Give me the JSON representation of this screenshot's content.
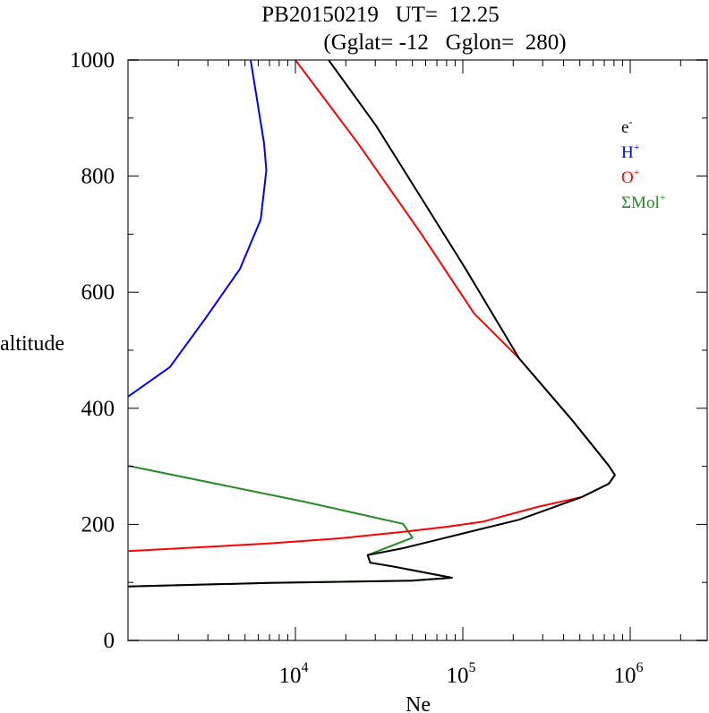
{
  "chart_data": {
    "type": "line",
    "title_line1": "PB20150219   UT=  12.25",
    "title_line2": "(Gglat= -12   Gglon=  280)",
    "xlabel": "Ne",
    "ylabel": "altitude",
    "xscale": "log",
    "xlim": [
      1000,
      2900000
    ],
    "ylim": [
      0,
      1000
    ],
    "grid": false,
    "legend_position": "top-right",
    "x_ticks": [
      {
        "value": 10000,
        "base": "10",
        "exp": "4"
      },
      {
        "value": 100000,
        "base": "10",
        "exp": "5"
      },
      {
        "value": 1000000,
        "base": "10",
        "exp": "6"
      }
    ],
    "y_ticks": [
      {
        "value": 0,
        "label": "0"
      },
      {
        "value": 200,
        "label": "200"
      },
      {
        "value": 400,
        "label": "400"
      },
      {
        "value": 600,
        "label": "600"
      },
      {
        "value": 800,
        "label": "800"
      },
      {
        "value": 1000,
        "label": "1000"
      }
    ],
    "series": [
      {
        "name": "e-",
        "label_base": "e",
        "label_sup": "-",
        "color": "#000000",
        "points": [
          [
            15800,
            1000
          ],
          [
            30300,
            887
          ],
          [
            56000,
            764
          ],
          [
            104000,
            640
          ],
          [
            217000,
            486
          ],
          [
            455000,
            378
          ],
          [
            745000,
            301
          ],
          [
            810000,
            285
          ],
          [
            745000,
            270
          ],
          [
            514000,
            247
          ],
          [
            217000,
            208
          ],
          [
            133000,
            193
          ],
          [
            72000,
            174
          ],
          [
            44000,
            159
          ],
          [
            27000,
            147
          ],
          [
            28000,
            134
          ],
          [
            39000,
            127
          ],
          [
            86000,
            108
          ],
          [
            49500,
            103
          ],
          [
            6900,
            99
          ],
          [
            1000,
            93
          ]
        ]
      },
      {
        "name": "H+",
        "label_base": "H",
        "label_sup": "+",
        "color": "#0000ff",
        "points": [
          [
            5400,
            1000
          ],
          [
            6500,
            856
          ],
          [
            6700,
            810
          ],
          [
            6200,
            725
          ],
          [
            4660,
            640
          ],
          [
            2920,
            556
          ],
          [
            1780,
            471
          ],
          [
            1000,
            420
          ]
        ]
      },
      {
        "name": "O+",
        "label_base": "O",
        "label_sup": "+",
        "color": "#ff0000",
        "points": [
          [
            10000,
            1000
          ],
          [
            23700,
            856
          ],
          [
            56000,
            702
          ],
          [
            117000,
            563
          ],
          [
            217000,
            486
          ],
          [
            455000,
            378
          ],
          [
            745000,
            301
          ],
          [
            810000,
            285
          ],
          [
            745000,
            270
          ],
          [
            514000,
            247
          ],
          [
            278000,
            230
          ],
          [
            133000,
            205
          ],
          [
            81000,
            196
          ],
          [
            44000,
            187
          ],
          [
            18500,
            176
          ],
          [
            6900,
            167
          ],
          [
            1000,
            154
          ]
        ]
      },
      {
        "name": "ΣMol+",
        "label_base": "ΣMol",
        "label_sup": "+",
        "color": "#228b22",
        "points": [
          [
            1000,
            301
          ],
          [
            11300,
            239
          ],
          [
            44000,
            201
          ],
          [
            50000,
            177
          ],
          [
            27000,
            147
          ],
          [
            28000,
            134
          ],
          [
            39000,
            127
          ],
          [
            86000,
            108
          ],
          [
            49500,
            103
          ],
          [
            6900,
            99
          ],
          [
            1000,
            93
          ]
        ]
      }
    ]
  }
}
